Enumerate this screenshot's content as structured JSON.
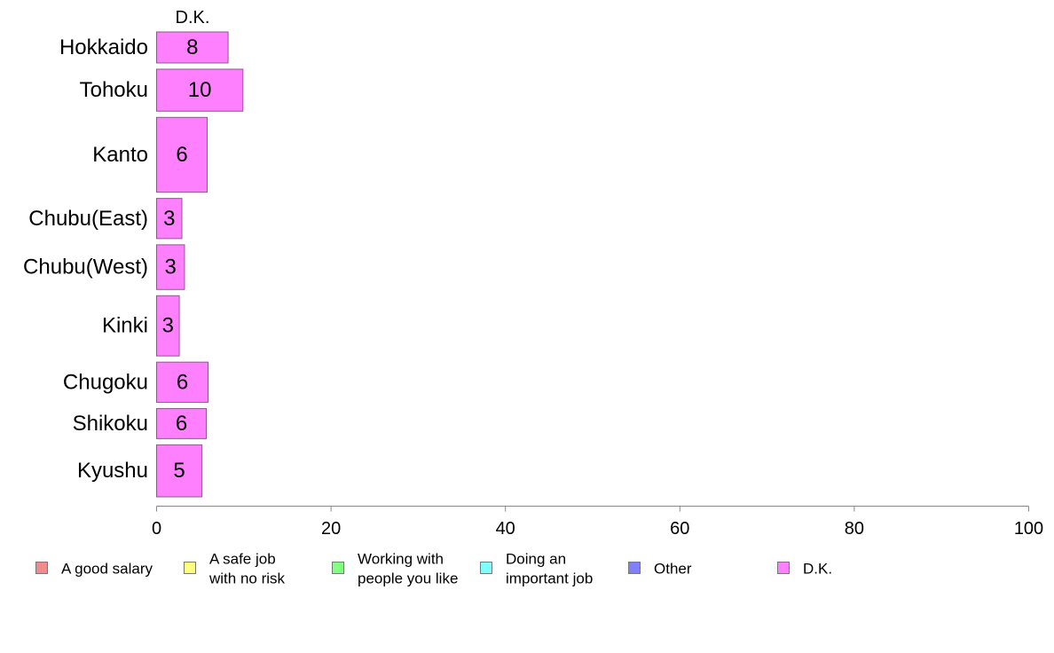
{
  "chart_data": {
    "type": "bar",
    "orientation": "horizontal",
    "stacked": true,
    "title": "",
    "xlabel": "",
    "ylabel": "",
    "xlim": [
      0,
      100
    ],
    "x_ticks": [
      0,
      20,
      40,
      60,
      80,
      100
    ],
    "grid": false,
    "legend_position": "bottom",
    "categories": [
      "Hokkaido",
      "Tohoku",
      "Kanto",
      "Chubu(East)",
      "Chubu(West)",
      "Kinki",
      "Chugoku",
      "Shikoku",
      "Kyushu"
    ],
    "category_weights": [
      0.68,
      0.92,
      1.64,
      0.88,
      0.98,
      1.32,
      0.88,
      0.66,
      1.14
    ],
    "series": [
      {
        "name": "A good salary",
        "color": "#f28b8b",
        "values": [
          0,
          0,
          0,
          0,
          0,
          0,
          0,
          0,
          0
        ]
      },
      {
        "name": "A safe job with no risk",
        "color": "#ffff80",
        "values": [
          0,
          0,
          0,
          0,
          0,
          0,
          0,
          0,
          0
        ]
      },
      {
        "name": "Working with people you like",
        "color": "#80ff80",
        "values": [
          0,
          0,
          0,
          0,
          0,
          0,
          0,
          0,
          0
        ]
      },
      {
        "name": "Doing an important job",
        "color": "#80ffff",
        "values": [
          0,
          0,
          0,
          0,
          0,
          0,
          0,
          0,
          0
        ]
      },
      {
        "name": "Other",
        "color": "#8080ff",
        "values": [
          0,
          0,
          0,
          0,
          0,
          0,
          0,
          0,
          0
        ]
      },
      {
        "name": "D.K.",
        "color": "#ff80ff",
        "values": [
          8.2,
          9.9,
          5.8,
          2.9,
          3.2,
          2.6,
          5.9,
          5.7,
          5.2
        ],
        "labels": [
          "8",
          "10",
          "6",
          "3",
          "3",
          "3",
          "6",
          "6",
          "5"
        ]
      }
    ],
    "series_header": "D.K.",
    "legend": [
      {
        "lines": [
          "A good salary"
        ],
        "color": "#f28b8b"
      },
      {
        "lines": [
          "A safe job",
          "with no risk"
        ],
        "color": "#ffff80"
      },
      {
        "lines": [
          "Working with",
          "people you like"
        ],
        "color": "#80ff80"
      },
      {
        "lines": [
          "Doing an",
          "important job"
        ],
        "color": "#80ffff"
      },
      {
        "lines": [
          "Other"
        ],
        "color": "#8080ff"
      },
      {
        "lines": [
          "D.K."
        ],
        "color": "#ff80ff"
      }
    ]
  }
}
